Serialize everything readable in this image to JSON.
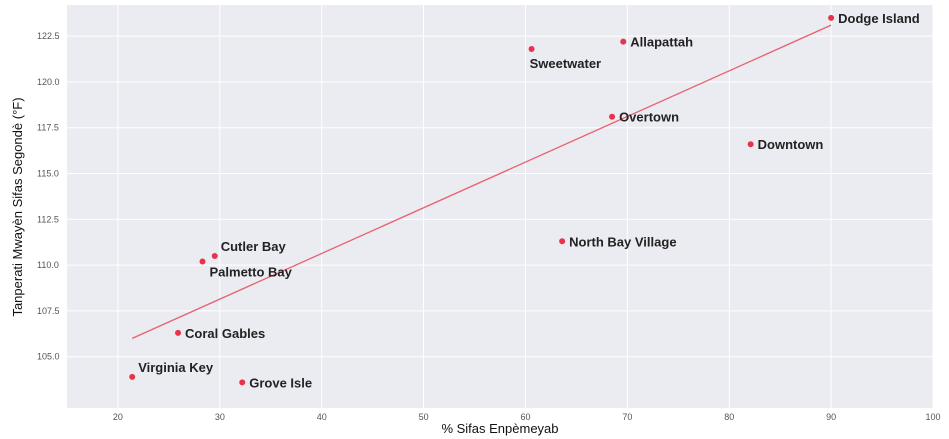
{
  "chart_data": {
    "type": "scatter",
    "xlabel": "% Sifas Enpèmeyab",
    "ylabel": "Tanperati Mwayèn Sifas Segondè (°F)",
    "xlim": [
      15,
      100
    ],
    "ylim": [
      102.2,
      124.2
    ],
    "x_ticks": [
      {
        "value": 20,
        "label": "20"
      },
      {
        "value": 30,
        "label": "30"
      },
      {
        "value": 40,
        "label": "40"
      },
      {
        "value": 50,
        "label": "50"
      },
      {
        "value": 60,
        "label": "60"
      },
      {
        "value": 70,
        "label": "70"
      },
      {
        "value": 80,
        "label": "80"
      },
      {
        "value": 90,
        "label": "90"
      },
      {
        "value": 100,
        "label": "100"
      }
    ],
    "y_ticks": [
      {
        "value": 105.0,
        "label": "105.0"
      },
      {
        "value": 107.5,
        "label": "107.5"
      },
      {
        "value": 110.0,
        "label": "110.0"
      },
      {
        "value": 112.5,
        "label": "112.5"
      },
      {
        "value": 115.0,
        "label": "115.0"
      },
      {
        "value": 117.5,
        "label": "117.5"
      },
      {
        "value": 120.0,
        "label": "120.0"
      },
      {
        "value": 122.5,
        "label": "122.5"
      }
    ],
    "grid": true,
    "point_color": "#e8334a",
    "trend_color": "#e8606e",
    "background_color": "#ebebf2",
    "points": [
      {
        "label": "Dodge Island",
        "x": 90,
        "y": 123.5,
        "label_pos": "right"
      },
      {
        "label": "Allapattah",
        "x": 69.6,
        "y": 122.2,
        "label_pos": "right"
      },
      {
        "label": "Sweetwater",
        "x": 60.6,
        "y": 121.8,
        "label_pos": "below"
      },
      {
        "label": "Overtown",
        "x": 68.5,
        "y": 118.1,
        "label_pos": "right"
      },
      {
        "label": "Downtown",
        "x": 82.1,
        "y": 116.6,
        "label_pos": "right"
      },
      {
        "label": "North Bay Village",
        "x": 63.6,
        "y": 111.3,
        "label_pos": "right"
      },
      {
        "label": "Cutler Bay",
        "x": 29.5,
        "y": 110.5,
        "label_pos": "above-right"
      },
      {
        "label": "Palmetto Bay",
        "x": 28.3,
        "y": 110.2,
        "label_pos": "below-right"
      },
      {
        "label": "Coral Gables",
        "x": 25.9,
        "y": 106.3,
        "label_pos": "right"
      },
      {
        "label": "Virginia Key",
        "x": 21.4,
        "y": 103.9,
        "label_pos": "above-right"
      },
      {
        "label": "Grove Isle",
        "x": 32.2,
        "y": 103.6,
        "label_pos": "right"
      }
    ],
    "trend": {
      "x": [
        21.4,
        90
      ],
      "y": [
        106.0,
        123.1
      ]
    }
  }
}
